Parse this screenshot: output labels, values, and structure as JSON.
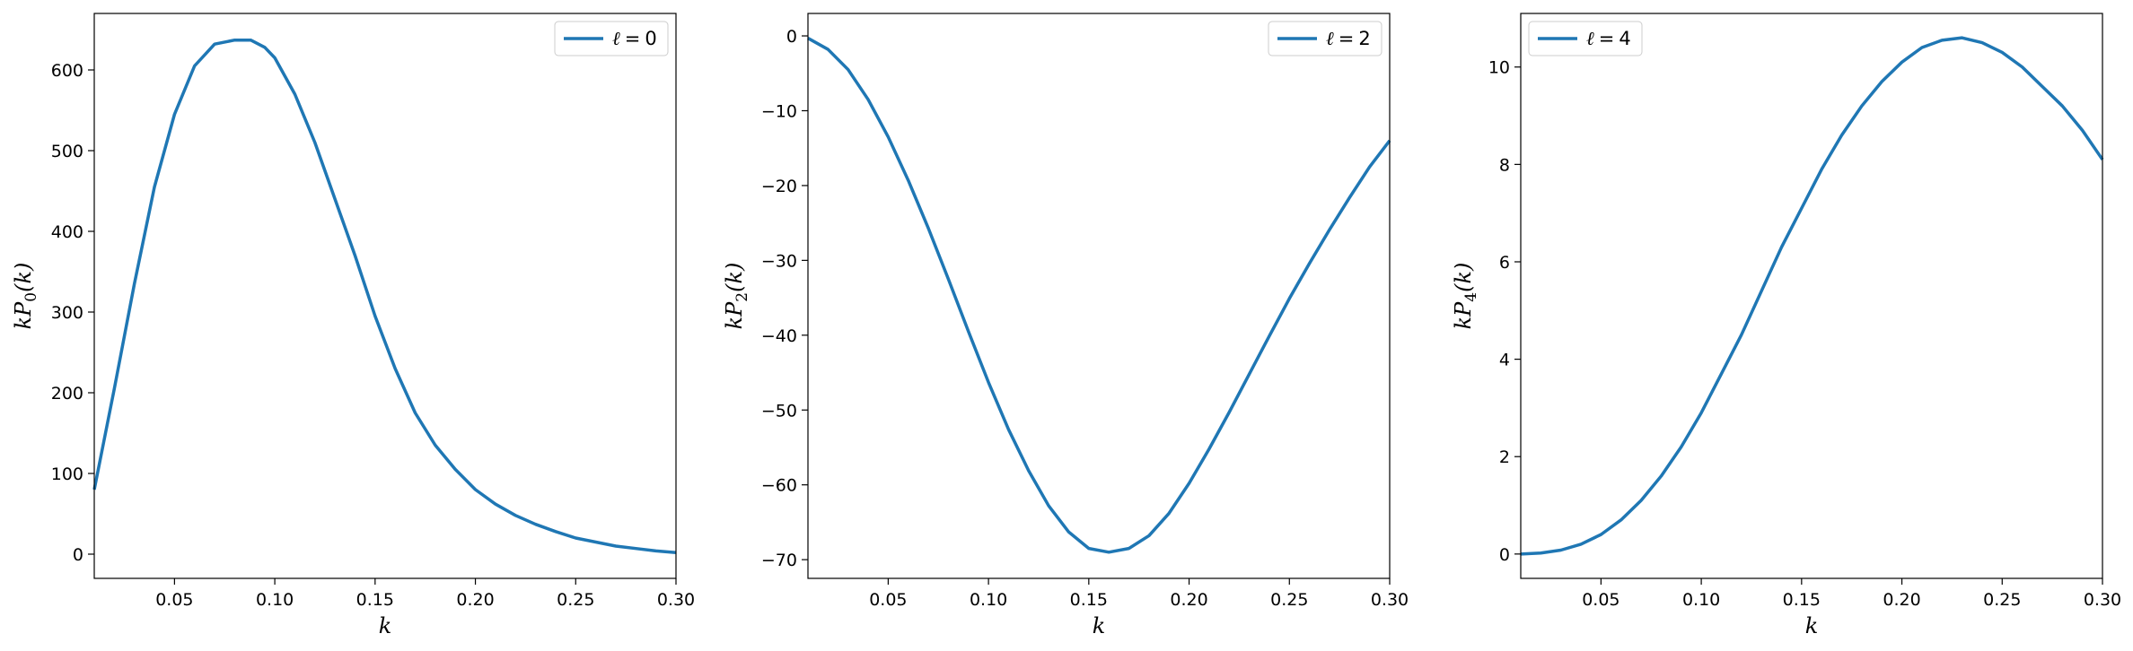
{
  "colors": {
    "line": "#1f77b4",
    "frame": "#000000",
    "legend_edge": "#cccccc"
  },
  "chart_data": [
    {
      "type": "line",
      "title": "",
      "xlabel": "k",
      "ylabel": {
        "prefix": "kP",
        "sub": "0",
        "suffix": "(k)"
      },
      "legend": {
        "position": "top-right",
        "entries": [
          {
            "label": "ℓ = 0",
            "symbol": "ℓ",
            "value": "0"
          }
        ]
      },
      "xlim": [
        0.01,
        0.3
      ],
      "ylim": [
        -30,
        670
      ],
      "xticks": [
        0.05,
        0.1,
        0.15,
        0.2,
        0.25,
        0.3
      ],
      "xtick_labels": [
        "0.05",
        "0.10",
        "0.15",
        "0.20",
        "0.25",
        "0.30"
      ],
      "yticks": [
        0,
        100,
        200,
        300,
        400,
        500,
        600
      ],
      "ytick_labels": [
        "0",
        "100",
        "200",
        "300",
        "400",
        "500",
        "600"
      ],
      "grid": false,
      "series": [
        {
          "x": [
            0.01,
            0.02,
            0.03,
            0.04,
            0.05,
            0.06,
            0.07,
            0.08,
            0.088,
            0.095,
            0.1,
            0.11,
            0.12,
            0.13,
            0.14,
            0.15,
            0.16,
            0.17,
            0.18,
            0.19,
            0.2,
            0.21,
            0.22,
            0.23,
            0.24,
            0.25,
            0.26,
            0.27,
            0.28,
            0.29,
            0.3
          ],
          "values": [
            80,
            205,
            335,
            455,
            545,
            605,
            632,
            637,
            637,
            628,
            615,
            570,
            510,
            440,
            370,
            295,
            230,
            175,
            135,
            105,
            80,
            62,
            48,
            37,
            28,
            20,
            15,
            10,
            7,
            4,
            2
          ]
        }
      ]
    },
    {
      "type": "line",
      "title": "",
      "xlabel": "k",
      "ylabel": {
        "prefix": "kP",
        "sub": "2",
        "suffix": "(k)"
      },
      "legend": {
        "position": "top-right",
        "entries": [
          {
            "label": "ℓ = 2",
            "symbol": "ℓ",
            "value": "2"
          }
        ]
      },
      "xlim": [
        0.01,
        0.3
      ],
      "ylim": [
        -72.5,
        3
      ],
      "xticks": [
        0.05,
        0.1,
        0.15,
        0.2,
        0.25,
        0.3
      ],
      "xtick_labels": [
        "0.05",
        "0.10",
        "0.15",
        "0.20",
        "0.25",
        "0.30"
      ],
      "yticks": [
        0,
        -10,
        -20,
        -30,
        -40,
        -50,
        -60,
        -70
      ],
      "ytick_labels": [
        "0",
        "−10",
        "−20",
        "−30",
        "−40",
        "−50",
        "−60",
        "−70"
      ],
      "grid": false,
      "series": [
        {
          "x": [
            0.01,
            0.02,
            0.03,
            0.04,
            0.05,
            0.06,
            0.07,
            0.08,
            0.09,
            0.1,
            0.11,
            0.12,
            0.13,
            0.14,
            0.15,
            0.16,
            0.17,
            0.18,
            0.19,
            0.2,
            0.21,
            0.22,
            0.23,
            0.24,
            0.25,
            0.26,
            0.27,
            0.28,
            0.29,
            0.3
          ],
          "values": [
            -0.3,
            -1.8,
            -4.5,
            -8.5,
            -13.5,
            -19.3,
            -25.7,
            -32.5,
            -39.5,
            -46.3,
            -52.6,
            -58.1,
            -62.8,
            -66.3,
            -68.5,
            -69.0,
            -68.5,
            -66.8,
            -63.8,
            -59.8,
            -55.2,
            -50.3,
            -45.2,
            -40.1,
            -35.1,
            -30.4,
            -25.9,
            -21.6,
            -17.5,
            -14.0
          ]
        }
      ]
    },
    {
      "type": "line",
      "title": "",
      "xlabel": "k",
      "ylabel": {
        "prefix": "kP",
        "sub": "4",
        "suffix": "(k)"
      },
      "legend": {
        "position": "top-left",
        "entries": [
          {
            "label": "ℓ = 4",
            "symbol": "ℓ",
            "value": "4"
          }
        ]
      },
      "xlim": [
        0.01,
        0.3
      ],
      "ylim": [
        -0.5,
        11.1
      ],
      "xticks": [
        0.05,
        0.1,
        0.15,
        0.2,
        0.25,
        0.3
      ],
      "xtick_labels": [
        "0.05",
        "0.10",
        "0.15",
        "0.20",
        "0.25",
        "0.30"
      ],
      "yticks": [
        0,
        2,
        4,
        6,
        8,
        10
      ],
      "ytick_labels": [
        "0",
        "2",
        "4",
        "6",
        "8",
        "10"
      ],
      "grid": false,
      "series": [
        {
          "x": [
            0.01,
            0.02,
            0.03,
            0.04,
            0.05,
            0.06,
            0.07,
            0.08,
            0.09,
            0.1,
            0.11,
            0.12,
            0.13,
            0.14,
            0.15,
            0.16,
            0.17,
            0.18,
            0.19,
            0.2,
            0.21,
            0.22,
            0.23,
            0.24,
            0.25,
            0.26,
            0.27,
            0.28,
            0.29,
            0.3
          ],
          "values": [
            0.0,
            0.02,
            0.08,
            0.2,
            0.4,
            0.7,
            1.1,
            1.6,
            2.2,
            2.9,
            3.7,
            4.5,
            5.4,
            6.3,
            7.1,
            7.9,
            8.6,
            9.2,
            9.7,
            10.1,
            10.4,
            10.55,
            10.6,
            10.5,
            10.3,
            10.0,
            9.6,
            9.2,
            8.7,
            8.1
          ]
        }
      ]
    }
  ]
}
